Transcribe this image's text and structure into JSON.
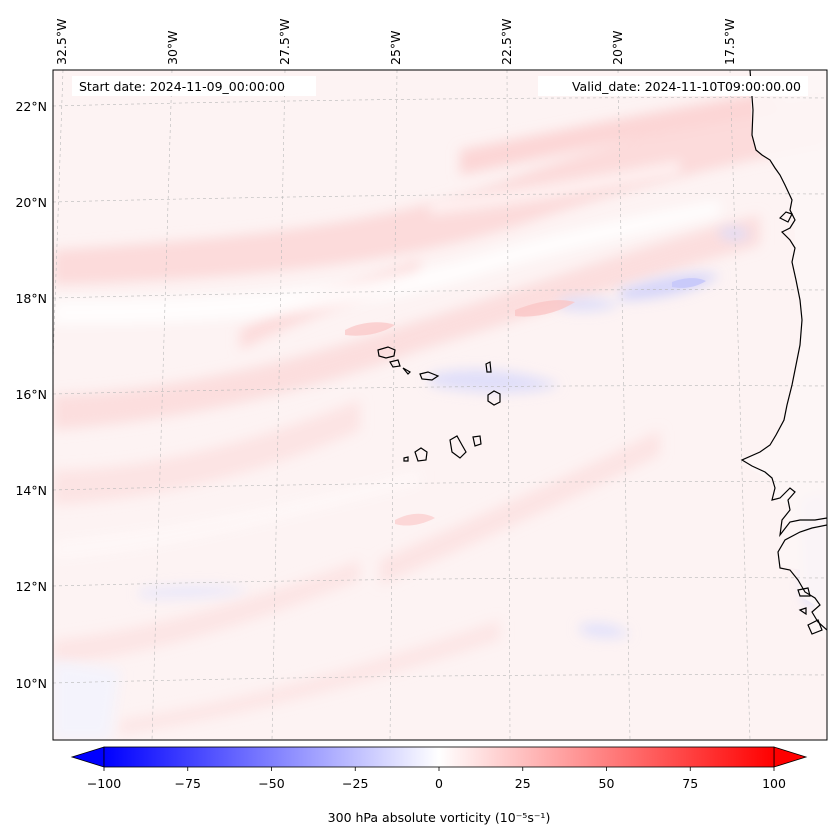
{
  "header": {
    "start_label": "Start date: 2024-11-09_00:00:00",
    "valid_label": "Valid_date: 2024-11-10T09:00:00.00"
  },
  "axes": {
    "lon_labels": [
      "32.5°W",
      "30°W",
      "27.5°W",
      "25°W",
      "22.5°W",
      "20°W",
      "17.5°W"
    ],
    "lat_labels": [
      "22°N",
      "20°N",
      "18°N",
      "16°N",
      "14°N",
      "12°N",
      "10°N"
    ]
  },
  "colorbar": {
    "label": "300 hPa absolute vorticity (10⁻⁵s⁻¹)",
    "tick_labels": [
      "−100",
      "−75",
      "−50",
      "−25",
      "0",
      "25",
      "50",
      "75",
      "100"
    ],
    "ticks": [
      -100,
      -75,
      -50,
      -25,
      0,
      25,
      50,
      75,
      100
    ],
    "range": [
      -100,
      100
    ],
    "colormap": "bwr",
    "negative_color": "#0000ff",
    "zero_color": "#ffffff",
    "positive_color": "#ff0000"
  },
  "map": {
    "projection": "lambert-conformal",
    "gridlines": true,
    "coastline_color": "#000000"
  }
}
